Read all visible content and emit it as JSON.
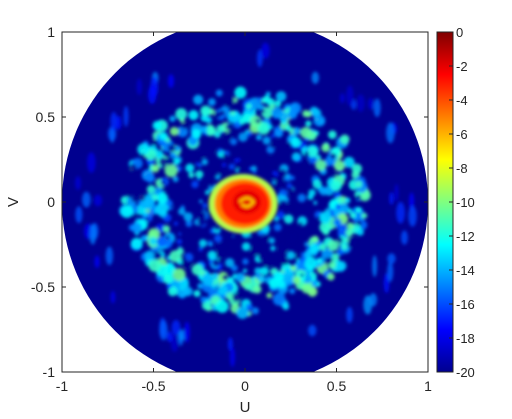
{
  "chart_data": {
    "type": "heatmap",
    "title": "",
    "xlabel": "U",
    "ylabel": "V",
    "xlim": [
      -1,
      1
    ],
    "ylim": [
      -1,
      1
    ],
    "x_ticks": [
      -1,
      -0.5,
      0,
      0.5,
      1
    ],
    "y_ticks": [
      -1,
      -0.5,
      0,
      0.5,
      1
    ],
    "x_tick_labels": [
      "-1",
      "-0.5",
      "0",
      "0.5",
      "1"
    ],
    "y_tick_labels": [
      "-1",
      "-0.5",
      "0",
      "0.5",
      "1"
    ],
    "domain_shape": "unit circle (U^2 + V^2 <= 1)",
    "grid": false,
    "colormap": "jet",
    "clim": [
      -20,
      0
    ],
    "colorbar_ticks": [
      0,
      -2,
      -4,
      -6,
      -8,
      -10,
      -12,
      -14,
      -16,
      -18,
      -20
    ],
    "colorbar_tick_labels": [
      "0",
      "-2",
      "-4",
      "-6",
      "-8",
      "-10",
      "-12",
      "-14",
      "-16",
      "-18",
      "-20"
    ],
    "features": [
      {
        "name": "main lobe",
        "center": [
          0,
          0
        ],
        "radius": 0.14,
        "level_dB": -2
      },
      {
        "name": "first sidelobe ring",
        "center": [
          0,
          0
        ],
        "radius": 0.55,
        "level_dB": -13
      },
      {
        "name": "outer ring",
        "center": [
          0,
          0
        ],
        "radius": 0.86,
        "level_dB": -17
      }
    ],
    "background_level_dB": -20
  }
}
